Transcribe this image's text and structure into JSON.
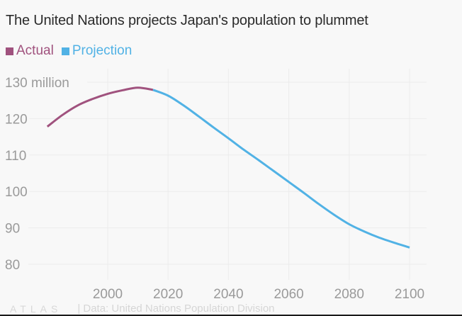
{
  "title": "The United Nations projects Japan's population to plummet",
  "legend": [
    {
      "label": "Actual",
      "color": "#a0527e"
    },
    {
      "label": "Projection",
      "color": "#51b2e5"
    }
  ],
  "footer": {
    "logo": "ATLAS",
    "source": "| Data: United Nations Population Division"
  },
  "chart_data": {
    "type": "line",
    "title": "The United Nations projects Japan's population to plummet",
    "xlabel": "",
    "ylabel": "",
    "xlim": [
      1975,
      2105
    ],
    "ylim": [
      77,
      133
    ],
    "x_ticks": [
      2000,
      2020,
      2040,
      2060,
      2080,
      2100
    ],
    "x_tick_labels": [
      "2000",
      "2020",
      "2040",
      "2060",
      "2080",
      "2100"
    ],
    "y_ticks": [
      80,
      90,
      100,
      110,
      120,
      130
    ],
    "y_tick_labels": [
      "80",
      "90",
      "100",
      "110",
      "120",
      "130 million"
    ],
    "grid": true,
    "legend_position": "top-left",
    "series": [
      {
        "name": "Actual",
        "color": "#a0527e",
        "x": [
          1980,
          1985,
          1990,
          1995,
          2000,
          2005,
          2010,
          2015
        ],
        "values": [
          117.8,
          121.0,
          123.6,
          125.4,
          126.8,
          127.8,
          128.5,
          127.9
        ]
      },
      {
        "name": "Projection",
        "color": "#51b2e5",
        "x": [
          2015,
          2020,
          2025,
          2030,
          2035,
          2040,
          2045,
          2050,
          2055,
          2060,
          2065,
          2070,
          2075,
          2080,
          2085,
          2090,
          2095,
          2100
        ],
        "values": [
          127.9,
          126.3,
          123.7,
          120.7,
          117.6,
          114.6,
          111.5,
          108.6,
          105.6,
          102.6,
          99.6,
          96.5,
          93.6,
          91.0,
          89.0,
          87.3,
          85.9,
          84.6
        ]
      }
    ]
  }
}
